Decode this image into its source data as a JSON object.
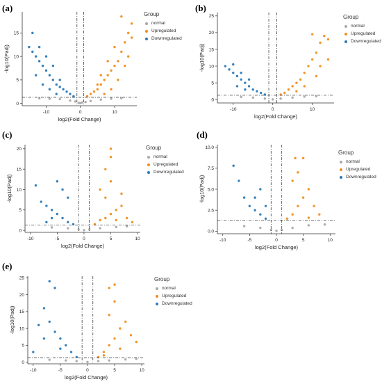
{
  "legend": {
    "title": "Group",
    "items": [
      {
        "label": "normal",
        "color": "#a9a9a9"
      },
      {
        "label": "Upregulated",
        "color": "#f28e1c"
      },
      {
        "label": "Downregulated",
        "color": "#2b7ab8"
      }
    ]
  },
  "chart_data": [
    {
      "panel": "(a)",
      "type": "scatter",
      "xlabel": "log2(Fold Change)",
      "ylabel": "-log10(Padj)",
      "xlim": [
        -17,
        16.5
      ],
      "ylim": [
        -0.5,
        19.5
      ],
      "xticks": [
        -10,
        0,
        10
      ],
      "yticks": [
        0,
        5,
        10,
        15
      ],
      "thresholds": {
        "x": [
          -1,
          1
        ],
        "y": 1.3
      },
      "series": [
        {
          "name": "normal",
          "points": [
            [
              -9,
              1.0
            ],
            [
              -6,
              0.9
            ],
            [
              -3,
              0.6
            ],
            [
              -1.5,
              0.4
            ],
            [
              -0.5,
              0.1
            ],
            [
              0,
              0.05
            ],
            [
              0.5,
              0.2
            ],
            [
              1.5,
              0.3
            ],
            [
              3,
              0.5
            ],
            [
              6,
              0.8
            ],
            [
              9,
              1.0
            ],
            [
              -12,
              1.1
            ],
            [
              12,
              1.1
            ]
          ]
        },
        {
          "name": "Upregulated",
          "points": [
            [
              2,
              1.5
            ],
            [
              3,
              2
            ],
            [
              4,
              2.5
            ],
            [
              5,
              3
            ],
            [
              6,
              4
            ],
            [
              7,
              5
            ],
            [
              8,
              6
            ],
            [
              9,
              7
            ],
            [
              10,
              8
            ],
            [
              11,
              9
            ],
            [
              12,
              11
            ],
            [
              13,
              13
            ],
            [
              14,
              15
            ],
            [
              15,
              17
            ],
            [
              12,
              18.5
            ],
            [
              10,
              12
            ],
            [
              8,
              9
            ],
            [
              6,
              6
            ],
            [
              5,
              4
            ],
            [
              14,
              10
            ],
            [
              13,
              8
            ],
            [
              11,
              5
            ],
            [
              9,
              3
            ],
            [
              7,
              2
            ],
            [
              15,
              14
            ]
          ]
        },
        {
          "name": "Downregulated",
          "points": [
            [
              -2,
              1.5
            ],
            [
              -3,
              2
            ],
            [
              -4,
              2.5
            ],
            [
              -5,
              3
            ],
            [
              -6,
              3.5
            ],
            [
              -7,
              4
            ],
            [
              -8,
              5
            ],
            [
              -9,
              6
            ],
            [
              -10,
              7
            ],
            [
              -11,
              8
            ],
            [
              -12,
              9
            ],
            [
              -13,
              10
            ],
            [
              -14,
              11
            ],
            [
              -15,
              12
            ],
            [
              -14,
              15
            ],
            [
              -12,
              12
            ],
            [
              -10,
              10
            ],
            [
              -8,
              8
            ],
            [
              -6,
              5
            ],
            [
              -13,
              6
            ],
            [
              -11,
              4
            ],
            [
              -9,
              3
            ],
            [
              -7,
              2
            ]
          ]
        }
      ]
    },
    {
      "panel": "(b)",
      "type": "scatter",
      "xlabel": "log2(Fold Change)",
      "ylabel": "-log10(Padj)",
      "xlim": [
        -14,
        15.5
      ],
      "ylim": [
        -1,
        26
      ],
      "xticks": [
        -10,
        0,
        10
      ],
      "yticks": [
        0,
        5,
        10,
        15,
        20,
        25
      ],
      "thresholds": {
        "x": [
          -1,
          1
        ],
        "y": 1.3
      },
      "series": [
        {
          "name": "normal",
          "points": [
            [
              -8,
              0.8
            ],
            [
              -5,
              0.6
            ],
            [
              -2,
              0.3
            ],
            [
              0,
              0.05
            ],
            [
              2,
              0.3
            ],
            [
              5,
              0.6
            ],
            [
              8,
              0.9
            ],
            [
              11,
              1.0
            ]
          ]
        },
        {
          "name": "Upregulated",
          "points": [
            [
              2,
              1.5
            ],
            [
              3,
              2
            ],
            [
              4,
              3
            ],
            [
              5,
              4
            ],
            [
              6,
              5
            ],
            [
              7,
              6
            ],
            [
              8,
              8
            ],
            [
              9,
              10
            ],
            [
              10,
              12
            ],
            [
              11,
              14
            ],
            [
              12,
              17
            ],
            [
              13,
              19
            ],
            [
              14,
              18
            ],
            [
              10,
              19.5
            ],
            [
              12,
              10
            ],
            [
              8,
              4
            ],
            [
              6,
              2.5
            ],
            [
              14,
              12
            ],
            [
              11,
              7
            ]
          ]
        },
        {
          "name": "Downregulated",
          "points": [
            [
              -2,
              1.5
            ],
            [
              -3,
              2
            ],
            [
              -4,
              2.5
            ],
            [
              -5,
              3
            ],
            [
              -6,
              4
            ],
            [
              -7,
              5
            ],
            [
              -8,
              6
            ],
            [
              -9,
              7
            ],
            [
              -10,
              8
            ],
            [
              -11,
              9
            ],
            [
              -12,
              10
            ],
            [
              -10,
              10.5
            ],
            [
              -8,
              8
            ],
            [
              -6,
              6
            ],
            [
              -9,
              4
            ],
            [
              -7,
              3
            ]
          ]
        }
      ]
    },
    {
      "panel": "(c)",
      "type": "scatter",
      "xlabel": "log2(Fold Change)",
      "ylabel": "-log10(Padj)",
      "xlim": [
        -11,
        10.5
      ],
      "ylim": [
        -0.5,
        21
      ],
      "xticks": [
        -10,
        -5,
        0,
        5,
        10
      ],
      "yticks": [
        0,
        5,
        10,
        15,
        20
      ],
      "thresholds": {
        "x": [
          -1,
          1
        ],
        "y": 1.3
      },
      "series": [
        {
          "name": "normal",
          "points": [
            [
              -6,
              0.7
            ],
            [
              -3,
              0.5
            ],
            [
              -1,
              0.2
            ],
            [
              0,
              0.05
            ],
            [
              1,
              0.2
            ],
            [
              3,
              0.5
            ],
            [
              6,
              0.8
            ],
            [
              8,
              1.0
            ]
          ]
        },
        {
          "name": "Upregulated",
          "points": [
            [
              2,
              1.5
            ],
            [
              3,
              2.5
            ],
            [
              4,
              3
            ],
            [
              5,
              4
            ],
            [
              6,
              5
            ],
            [
              7,
              6
            ],
            [
              4,
              8
            ],
            [
              3,
              10
            ],
            [
              5,
              12
            ],
            [
              4,
              15
            ],
            [
              5,
              18
            ],
            [
              5,
              20
            ],
            [
              7,
              9
            ],
            [
              8,
              3
            ],
            [
              9,
              2
            ],
            [
              6,
              2.5
            ]
          ]
        },
        {
          "name": "Downregulated",
          "points": [
            [
              -2,
              1.5
            ],
            [
              -3,
              2
            ],
            [
              -4,
              3
            ],
            [
              -5,
              4
            ],
            [
              -6,
              5
            ],
            [
              -7,
              6
            ],
            [
              -8,
              7
            ],
            [
              -9,
              11
            ],
            [
              -5,
              12
            ],
            [
              -4,
              10
            ],
            [
              -3,
              8
            ],
            [
              -6,
              3
            ],
            [
              -7,
              2
            ]
          ]
        }
      ]
    },
    {
      "panel": "(d)",
      "type": "scatter",
      "xlabel": "log2(Fold Change)",
      "ylabel": "-log10(Padj)",
      "xlim": [
        -11,
        11
      ],
      "ylim": [
        -0.3,
        10.3
      ],
      "xticks": [
        -10,
        -5,
        0,
        5,
        10
      ],
      "yticks": [
        0.0,
        2.5,
        5.0,
        7.5,
        10.0
      ],
      "thresholds": {
        "x": [
          -1,
          1
        ],
        "y": 1.3
      },
      "series": [
        {
          "name": "normal",
          "points": [
            [
              -6,
              0.6
            ],
            [
              -3,
              0.4
            ],
            [
              -1,
              0.15
            ],
            [
              0,
              0.05
            ],
            [
              1,
              0.15
            ],
            [
              3,
              0.4
            ],
            [
              6,
              0.7
            ],
            [
              9,
              0.8
            ]
          ]
        },
        {
          "name": "Upregulated",
          "points": [
            [
              2,
              1.5
            ],
            [
              3,
              2
            ],
            [
              4,
              3
            ],
            [
              5,
              4
            ],
            [
              6,
              5
            ],
            [
              3,
              6
            ],
            [
              4,
              7
            ],
            [
              5,
              8.7
            ],
            [
              3.5,
              8.7
            ],
            [
              7,
              3
            ],
            [
              8,
              2
            ],
            [
              6,
              1.6
            ]
          ]
        },
        {
          "name": "Downregulated",
          "points": [
            [
              -2,
              1.5
            ],
            [
              -3,
              2
            ],
            [
              -4,
              2.5
            ],
            [
              -5,
              3
            ],
            [
              -6,
              4
            ],
            [
              -7,
              6
            ],
            [
              -8,
              7.8
            ],
            [
              -3,
              5
            ],
            [
              -4,
              4
            ],
            [
              -2,
              3
            ]
          ]
        }
      ]
    },
    {
      "panel": "(e)",
      "type": "scatter",
      "xlabel": "log2(Fold Change)",
      "ylabel": "-log10(Padj)",
      "xlim": [
        -11,
        10.5
      ],
      "ylim": [
        -0.5,
        25.5
      ],
      "xticks": [
        -10,
        -5,
        0,
        5,
        10
      ],
      "yticks": [
        0,
        5,
        10,
        15,
        20,
        25
      ],
      "thresholds": {
        "x": [
          -1,
          1
        ],
        "y": 1.3
      },
      "series": [
        {
          "name": "normal",
          "points": [
            [
              -7,
              0.7
            ],
            [
              -4,
              0.5
            ],
            [
              -2,
              0.3
            ],
            [
              0,
              0.05
            ],
            [
              2,
              0.3
            ],
            [
              4,
              0.5
            ],
            [
              7,
              0.8
            ],
            [
              9,
              1.0
            ]
          ]
        },
        {
          "name": "Upregulated",
          "points": [
            [
              2,
              1.5
            ],
            [
              3,
              3
            ],
            [
              4,
              5
            ],
            [
              5,
              7
            ],
            [
              6,
              10
            ],
            [
              4,
              14
            ],
            [
              5,
              18
            ],
            [
              4,
              22
            ],
            [
              5,
              23
            ],
            [
              7,
              12
            ],
            [
              8,
              8
            ],
            [
              9,
              6
            ],
            [
              6,
              4
            ],
            [
              3,
              2
            ]
          ]
        },
        {
          "name": "Downregulated",
          "points": [
            [
              -2,
              1.5
            ],
            [
              -3,
              3
            ],
            [
              -4,
              5
            ],
            [
              -5,
              7
            ],
            [
              -6,
              9
            ],
            [
              -7,
              12
            ],
            [
              -8,
              16
            ],
            [
              -7,
              24
            ],
            [
              -6,
              22
            ],
            [
              -9,
              11
            ],
            [
              -10,
              3
            ],
            [
              -5,
              4
            ],
            [
              -8,
              7
            ]
          ]
        }
      ]
    }
  ]
}
